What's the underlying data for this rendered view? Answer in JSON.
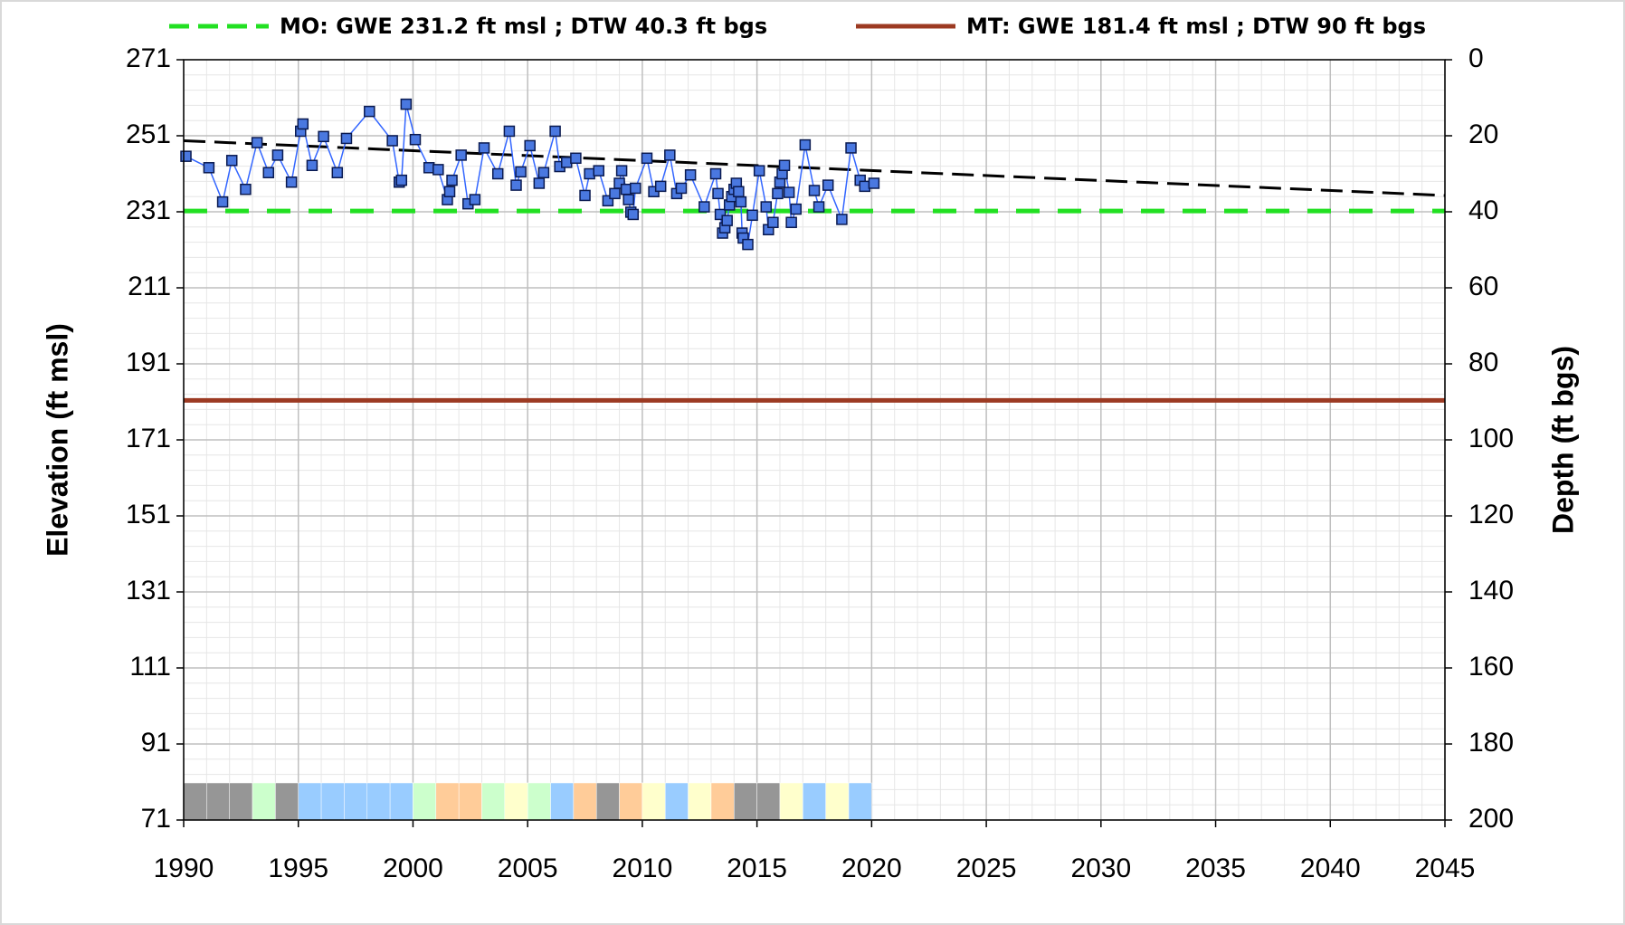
{
  "chart_data": {
    "type": "line",
    "y_label": "Elevation (ft msl)",
    "y2_label": "Depth (ft bgs)",
    "xlim": [
      1990,
      2045
    ],
    "xticks": [
      1990,
      1995,
      2000,
      2005,
      2010,
      2015,
      2020,
      2025,
      2030,
      2035,
      2040,
      2045
    ],
    "ylim": [
      71,
      271
    ],
    "yticks": [
      71,
      91,
      111,
      131,
      151,
      171,
      191,
      211,
      231,
      251,
      271
    ],
    "y2lim": [
      200,
      0
    ],
    "y2ticks": [
      0,
      20,
      40,
      60,
      80,
      100,
      120,
      140,
      160,
      180,
      200
    ],
    "grid": true,
    "minor_grid": true,
    "series": [
      {
        "color": "#3366ff",
        "x": [
          1990.1,
          1991.1,
          1991.7,
          1992.1,
          1992.7,
          1993.2,
          1993.7,
          1994.1,
          1994.7,
          1995.1,
          1995.2,
          1995.6,
          1996.1,
          1996.7,
          1997.1,
          1998.1,
          1999.1,
          1999.4,
          1999.5,
          1999.7,
          2000.1,
          2000.7,
          2001.1,
          2001.5,
          2001.6,
          2001.7,
          2002.1,
          2002.4,
          2002.7,
          2003.1,
          2003.7,
          2004.2,
          2004.5,
          2004.7,
          2005.1,
          2005.5,
          2005.7,
          2006.2,
          2006.4,
          2006.7,
          2007.1,
          2007.5,
          2007.7,
          2008.1,
          2008.5,
          2008.8,
          2009.0,
          2009.1,
          2009.3,
          2009.4,
          2009.5,
          2009.6,
          2009.7,
          2010.2,
          2010.5,
          2010.8,
          2011.2,
          2011.5,
          2011.7,
          2012.1,
          2012.7,
          2013.2,
          2013.3,
          2013.4,
          2013.5,
          2013.6,
          2013.7,
          2013.8,
          2013.9,
          2014.0,
          2014.1,
          2014.2,
          2014.3,
          2014.35,
          2014.4,
          2014.6,
          2014.8,
          2015.1,
          2015.4,
          2015.5,
          2015.7,
          2015.9,
          2016.0,
          2016.1,
          2016.2,
          2016.4,
          2016.5,
          2016.7,
          2017.1,
          2017.5,
          2017.7,
          2018.1,
          2018.7,
          2019.1,
          2019.5,
          2019.7,
          2020.1
        ],
        "values": [
          245.6,
          242.6,
          233.6,
          244.5,
          236.9,
          249.2,
          241.3,
          245.9,
          238.8,
          252.2,
          254.1,
          243.2,
          250.8,
          241.3,
          250.3,
          257.4,
          249.7,
          238.8,
          239.3,
          259.3,
          250.0,
          242.6,
          242.1,
          234.2,
          236.3,
          239.3,
          245.9,
          233.1,
          234.2,
          247.8,
          241.0,
          252.2,
          238.0,
          241.5,
          248.4,
          238.5,
          241.3,
          252.2,
          242.9,
          244.0,
          245.1,
          235.3,
          241.0,
          241.8,
          233.9,
          235.8,
          238.5,
          241.8,
          236.9,
          234.2,
          230.9,
          230.3,
          237.2,
          245.1,
          236.3,
          237.7,
          245.9,
          235.8,
          237.2,
          240.7,
          232.3,
          241.0,
          235.8,
          230.3,
          225.4,
          226.8,
          228.7,
          232.8,
          235.0,
          236.9,
          238.5,
          236.3,
          233.6,
          225.4,
          224.1,
          222.4,
          230.1,
          241.8,
          232.3,
          226.3,
          228.2,
          235.8,
          238.8,
          241.0,
          243.2,
          236.1,
          228.2,
          231.7,
          248.6,
          236.6,
          232.3,
          238.0,
          229.0,
          247.8,
          239.3,
          237.7,
          238.5
        ]
      }
    ],
    "trendline": {
      "color": "#000000",
      "x": [
        1990,
        2045
      ],
      "values": [
        249.7,
        235.3
      ]
    },
    "reference_lines": [
      {
        "name": "MO: GWE 231.2 ft msl ; DTW 40.3 ft bgs",
        "color": "#22e022",
        "value": 231.2,
        "dashed": true
      },
      {
        "name": "MT: GWE 181.4 ft msl ; DTW 90 ft bgs",
        "color": "#9c3a22",
        "value": 181.4,
        "dashed": false
      }
    ],
    "water_year_types": {
      "years": [
        1990,
        1991,
        1992,
        1993,
        1994,
        1995,
        1996,
        1997,
        1998,
        1999,
        2000,
        2001,
        2002,
        2003,
        2004,
        2005,
        2006,
        2007,
        2008,
        2009,
        2010,
        2011,
        2012,
        2013,
        2014,
        2015,
        2016,
        2017,
        2018,
        2019
      ],
      "colors": [
        "#969696",
        "#969696",
        "#969696",
        "#ccffcc",
        "#969696",
        "#99ccff",
        "#99ccff",
        "#99ccff",
        "#99ccff",
        "#99ccff",
        "#ccffcc",
        "#ffcc99",
        "#ffcc99",
        "#ccffcc",
        "#ffffcc",
        "#ccffcc",
        "#99ccff",
        "#ffcc99",
        "#969696",
        "#ffcc99",
        "#ffffcc",
        "#99ccff",
        "#ffffcc",
        "#ffcc99",
        "#969696",
        "#969696",
        "#ffffcc",
        "#99ccff",
        "#ffffcc",
        "#99ccff"
      ]
    }
  }
}
